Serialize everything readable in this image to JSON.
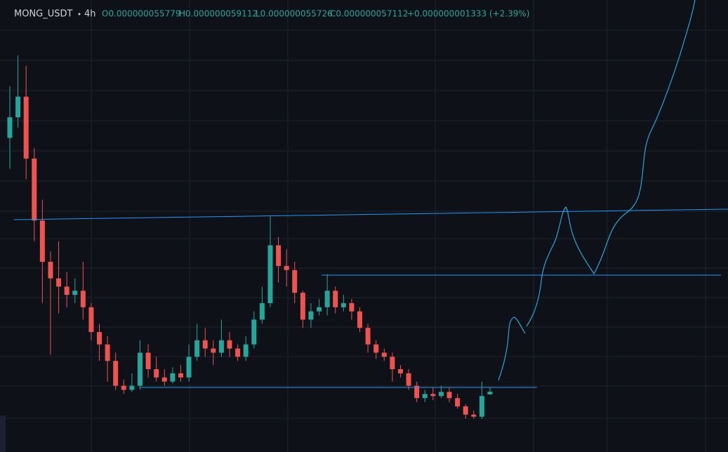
{
  "header": {
    "symbol": "MONG_USDT",
    "interval": "4h",
    "open": "O0.000000055779",
    "high": "H0.000000059112",
    "low": "L0.000000055726",
    "close": "C0.000000057112",
    "change": "+0.000000001333 (+2.39%)"
  },
  "chart_data": {
    "type": "candlestick",
    "ylim": [
      2.79e-08,
      2.468e-07
    ],
    "up_color": "#26a69a",
    "down_color": "#ef5350",
    "open": [
      1.8e-07,
      1.9e-07,
      2e-07,
      1.7e-07,
      1.4e-07,
      1.2e-07,
      1.12e-07,
      1.08e-07,
      1.04e-07,
      1.06e-07,
      9.8e-08,
      8.6e-08,
      8e-08,
      7.2e-08,
      6e-08,
      5.8e-08,
      6e-08,
      7.6e-08,
      6.8e-08,
      6.4e-08,
      6.2e-08,
      6.6e-08,
      6.4e-08,
      7.4e-08,
      8.2e-08,
      7.8e-08,
      7.6e-08,
      8.2e-08,
      7.8e-08,
      7.4e-08,
      8e-08,
      9.2e-08,
      1e-07,
      1.28e-07,
      1.18e-07,
      1.16e-07,
      1.05e-07,
      9.2e-08,
      9.6e-08,
      9.8e-08,
      1.06e-07,
      9.8e-08,
      1e-07,
      9.6e-08,
      8.8e-08,
      8e-08,
      7.6e-08,
      7.4e-08,
      6.8e-08,
      6.6e-08,
      6e-08,
      5.4e-08,
      5.6e-08,
      5.5e-08,
      5.7e-08,
      5.4e-08,
      5e-08,
      4.6e-08,
      4.5e-08,
      5.5779e-08
    ],
    "high": [
      2.05e-07,
      2.2e-07,
      2.15e-07,
      1.75e-07,
      1.5e-07,
      1.25e-07,
      1.3e-07,
      1.15e-07,
      1.12e-07,
      1.2e-07,
      1e-07,
      9e-08,
      8.4e-08,
      7.6e-08,
      6.3e-08,
      6.6e-08,
      8.2e-08,
      8e-08,
      7.4e-08,
      6.8e-08,
      6.9e-08,
      7e-08,
      8e-08,
      9e-08,
      8.8e-08,
      8.2e-08,
      9.2e-08,
      8.6e-08,
      8e-08,
      8.4e-08,
      9.6e-08,
      1.08e-07,
      1.42e-07,
      1.32e-07,
      1.26e-07,
      1.2e-07,
      1.06e-07,
      1e-07,
      1.02e-07,
      1.14e-07,
      1.08e-07,
      1.04e-07,
      1.02e-07,
      9.8e-08,
      9e-08,
      8.2e-08,
      7.8e-08,
      7.6e-08,
      7e-08,
      6.8e-08,
      6.2e-08,
      5.8e-08,
      5.9e-08,
      6e-08,
      5.9e-08,
      5.6e-08,
      5.1e-08,
      4.8e-08,
      6.2e-08,
      5.9112e-08
    ],
    "low": [
      1.65e-07,
      1.85e-07,
      1.6e-07,
      1.3e-07,
      1e-07,
      7.5e-08,
      9.5e-08,
      9.8e-08,
      1e-07,
      9.2e-08,
      8.2e-08,
      7.2e-08,
      6.2e-08,
      5.8e-08,
      5.6e-08,
      5.7e-08,
      5.8e-08,
      6.4e-08,
      6.2e-08,
      6e-08,
      6.1e-08,
      6.2e-08,
      6.2e-08,
      7.2e-08,
      7.4e-08,
      7e-08,
      7.4e-08,
      7.4e-08,
      7.2e-08,
      7.2e-08,
      7.8e-08,
      9e-08,
      9.8e-08,
      1.1e-07,
      1.08e-07,
      1e-07,
      8.8e-08,
      8.8e-08,
      9.4e-08,
      9.4e-08,
      9.5e-08,
      9.6e-08,
      9.2e-08,
      8.6e-08,
      7.6e-08,
      7.3e-08,
      7.2e-08,
      6.2e-08,
      6.4e-08,
      5.8e-08,
      5.2e-08,
      5.2e-08,
      5.3e-08,
      5.4e-08,
      5.2e-08,
      4.9e-08,
      4.4e-08,
      4.4e-08,
      4.4e-08,
      5.5726e-08
    ],
    "close": [
      1.9e-07,
      2e-07,
      1.7e-07,
      1.4e-07,
      1.2e-07,
      1.12e-07,
      1.08e-07,
      1.04e-07,
      1.06e-07,
      9.8e-08,
      8.6e-08,
      8e-08,
      7.2e-08,
      6e-08,
      5.8e-08,
      6e-08,
      7.6e-08,
      6.8e-08,
      6.4e-08,
      6.2e-08,
      6.6e-08,
      6.4e-08,
      7.4e-08,
      8.2e-08,
      7.8e-08,
      7.6e-08,
      8.2e-08,
      7.8e-08,
      7.4e-08,
      8e-08,
      9.2e-08,
      1e-07,
      1.28e-07,
      1.18e-07,
      1.16e-07,
      1.05e-07,
      9.2e-08,
      9.6e-08,
      9.8e-08,
      1.06e-07,
      9.8e-08,
      1e-07,
      9.6e-08,
      8.8e-08,
      8e-08,
      7.6e-08,
      7.4e-08,
      6.8e-08,
      6.6e-08,
      6e-08,
      5.4e-08,
      5.6e-08,
      5.5e-08,
      5.7e-08,
      5.4e-08,
      5e-08,
      4.6e-08,
      4.5e-08,
      5.5e-08,
      5.7112e-08
    ]
  }
}
